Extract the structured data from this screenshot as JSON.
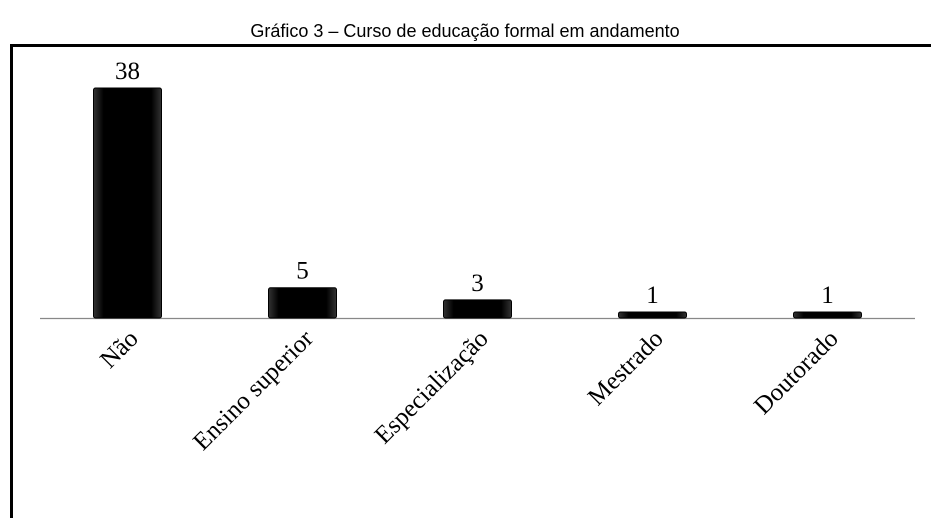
{
  "chart_data": {
    "type": "bar",
    "title": "Gráfico 3 – Curso de educação formal em andamento",
    "categories": [
      "Não",
      "Ensino superior",
      "Especialização",
      "Mestrado",
      "Doutorado"
    ],
    "values": [
      38,
      5,
      3,
      1,
      1
    ],
    "color": "#000000"
  }
}
